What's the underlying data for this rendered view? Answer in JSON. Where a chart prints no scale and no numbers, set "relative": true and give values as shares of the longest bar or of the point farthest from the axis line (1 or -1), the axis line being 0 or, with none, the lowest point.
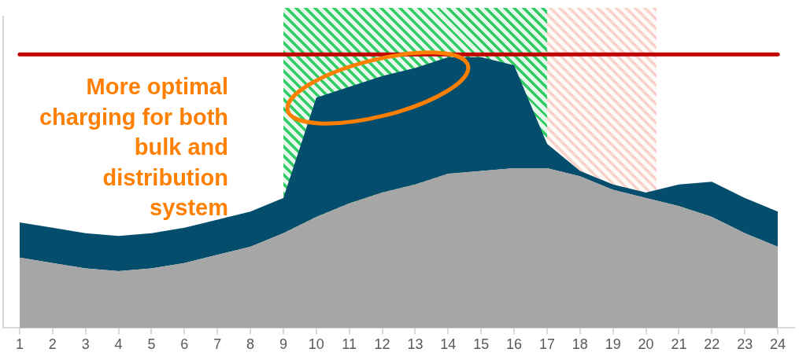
{
  "chart_data": {
    "type": "area",
    "stacked": true,
    "relative": true,
    "legend": false,
    "grid": false,
    "marker": "none",
    "x": [
      1,
      2,
      3,
      4,
      5,
      6,
      7,
      8,
      9,
      10,
      11,
      12,
      13,
      14,
      15,
      16,
      17,
      18,
      19,
      20,
      21,
      22,
      23,
      24
    ],
    "xlim": [
      0.5,
      24.5
    ],
    "xticks": [
      1,
      2,
      3,
      4,
      5,
      6,
      7,
      8,
      9,
      10,
      11,
      12,
      13,
      14,
      15,
      16,
      17,
      18,
      19,
      20,
      21,
      22,
      23,
      24
    ],
    "series": [
      {
        "color": "#a6a6a6",
        "values": [
          0.26,
          0.24,
          0.22,
          0.21,
          0.22,
          0.24,
          0.27,
          0.3,
          0.35,
          0.41,
          0.46,
          0.5,
          0.53,
          0.57,
          0.58,
          0.59,
          0.59,
          0.56,
          0.51,
          0.48,
          0.45,
          0.41,
          0.35,
          0.3
        ]
      },
      {
        "color": "#044d6c",
        "values": [
          0.13,
          0.13,
          0.13,
          0.13,
          0.13,
          0.13,
          0.13,
          0.13,
          0.13,
          0.44,
          0.43,
          0.43,
          0.43,
          0.43,
          0.42,
          0.38,
          0.09,
          0.02,
          0.02,
          0.02,
          0.08,
          0.13,
          0.13,
          0.13
        ]
      }
    ],
    "ref_lines": [
      {
        "axis": "y",
        "value": 1.01,
        "color": "#c00000"
      }
    ],
    "bands": [
      {
        "axis": "x",
        "from": 9,
        "to": 17,
        "color": "#33cc66"
      },
      {
        "axis": "x",
        "from": 17,
        "to": 20.33,
        "color": "#f9d3cb"
      }
    ],
    "annotations": [
      "More optimal charging for both bulk and distribution system"
    ]
  }
}
